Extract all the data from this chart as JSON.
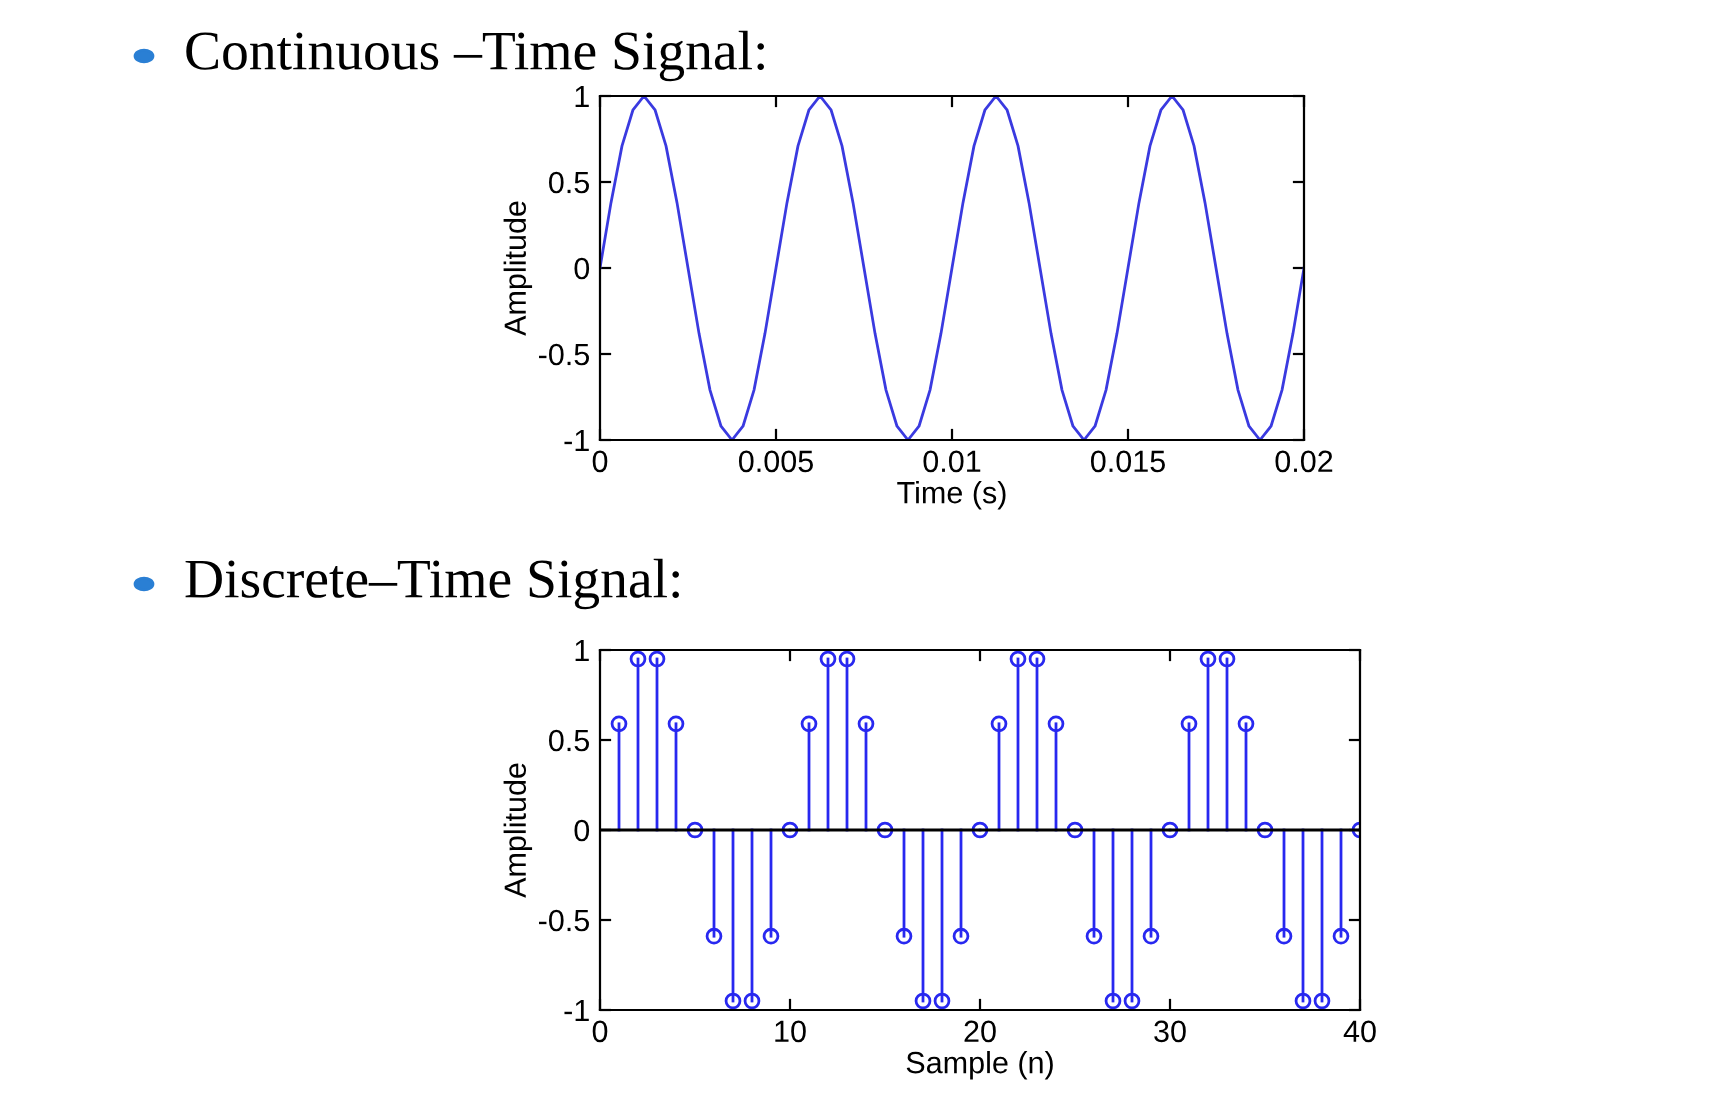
{
  "chart_data": [
    {
      "type": "line",
      "title": "Continuous –Time Signal:",
      "xlabel": "Time (s)",
      "ylabel": "Amplitude",
      "color": "#3a3ae0",
      "marker": "none",
      "grid": false,
      "x": [
        0,
        0.0003125,
        0.000625,
        0.0009375,
        0.00125,
        0.0015625,
        0.001875,
        0.0021875,
        0.0025,
        0.0028125,
        0.003125,
        0.0034375,
        0.00375,
        0.0040625,
        0.004375,
        0.0046875,
        0.005,
        0.0053125,
        0.005625,
        0.0059375,
        0.00625,
        0.0065625,
        0.006875,
        0.0071875,
        0.0075,
        0.0078125,
        0.008125,
        0.0084375,
        0.00875,
        0.0090625,
        0.009375,
        0.0096875,
        0.01,
        0.0103125,
        0.010625,
        0.0109375,
        0.01125,
        0.0115625,
        0.011875,
        0.0121875,
        0.0125,
        0.0128125,
        0.013125,
        0.0134375,
        0.01375,
        0.0140625,
        0.014375,
        0.0146875,
        0.015,
        0.0153125,
        0.015625,
        0.0159375,
        0.01625,
        0.0165625,
        0.016875,
        0.0171875,
        0.0175,
        0.0178125,
        0.018125,
        0.0184375,
        0.01875,
        0.0190625,
        0.019375,
        0.0196875,
        0.02
      ],
      "values": [
        0,
        0.38,
        0.71,
        0.92,
        1,
        0.92,
        0.71,
        0.38,
        0,
        -0.38,
        -0.71,
        -0.92,
        -1,
        -0.92,
        -0.71,
        -0.38,
        0,
        0.38,
        0.71,
        0.92,
        1,
        0.92,
        0.71,
        0.38,
        0,
        -0.38,
        -0.71,
        -0.92,
        -1,
        -0.92,
        -0.71,
        -0.38,
        0,
        0.38,
        0.71,
        0.92,
        1,
        0.92,
        0.71,
        0.38,
        0,
        -0.38,
        -0.71,
        -0.92,
        -1,
        -0.92,
        -0.71,
        -0.38,
        0,
        0.38,
        0.71,
        0.92,
        1,
        0.92,
        0.71,
        0.38,
        0,
        -0.38,
        -0.71,
        -0.92,
        -1,
        -0.92,
        -0.71,
        -0.38,
        0
      ],
      "xlim": [
        0,
        0.02
      ],
      "xticks": [
        0,
        0.005,
        0.01,
        0.015,
        0.02
      ],
      "ylim": [
        -1,
        1
      ],
      "yticks": [
        -1,
        -0.5,
        0,
        0.5,
        1
      ]
    },
    {
      "type": "lollipop",
      "title": "Discrete–Time Signal:",
      "xlabel": "Sample (n)",
      "ylabel": "Amplitude",
      "color": "#2828f0",
      "marker": "circle",
      "grid": false,
      "x": [
        1,
        2,
        3,
        4,
        5,
        6,
        7,
        8,
        9,
        10,
        11,
        12,
        13,
        14,
        15,
        16,
        17,
        18,
        19,
        20,
        21,
        22,
        23,
        24,
        25,
        26,
        27,
        28,
        29,
        30,
        31,
        32,
        33,
        34,
        35,
        36,
        37,
        38,
        39,
        40
      ],
      "values": [
        0.59,
        0.95,
        0.95,
        0.59,
        0,
        -0.59,
        -0.95,
        -0.95,
        -0.59,
        0,
        0.59,
        0.95,
        0.95,
        0.59,
        0,
        -0.59,
        -0.95,
        -0.95,
        -0.59,
        0,
        0.59,
        0.95,
        0.95,
        0.59,
        0,
        -0.59,
        -0.95,
        -0.95,
        -0.59,
        0,
        0.59,
        0.95,
        0.95,
        0.59,
        0,
        -0.59,
        -0.95,
        -0.95,
        -0.59,
        0
      ],
      "ref_lines": [
        {
          "axis": "y",
          "value": 0,
          "color": "#000000"
        }
      ],
      "xlim": [
        0,
        40
      ],
      "xticks": [
        0,
        10,
        20,
        30,
        40
      ],
      "ylim": [
        -1,
        1
      ],
      "yticks": [
        -1,
        -0.5,
        0,
        0.5,
        1
      ]
    }
  ]
}
